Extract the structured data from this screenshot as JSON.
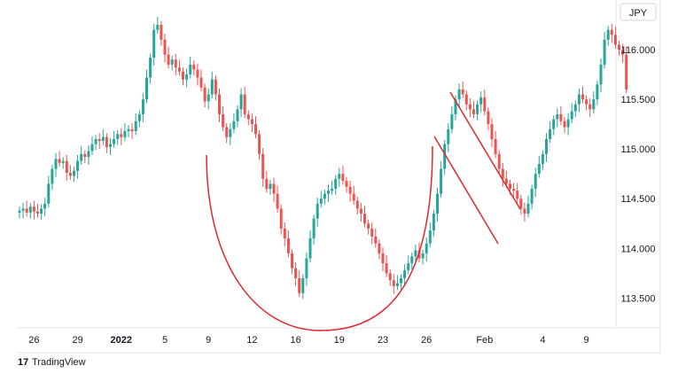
{
  "brand": {
    "name": "TradingView"
  },
  "chart_data": {
    "type": "candlestick",
    "currency": "JPY",
    "y_ticks": [
      "116.000",
      "115.500",
      "115.000",
      "114.500",
      "114.000",
      "113.500"
    ],
    "ylim": [
      113.2,
      116.5
    ],
    "x_ticks": [
      {
        "label": "26",
        "i": 4
      },
      {
        "label": "29",
        "i": 16
      },
      {
        "label": "2022",
        "i": 28
      },
      {
        "label": "5",
        "i": 40
      },
      {
        "label": "9",
        "i": 52
      },
      {
        "label": "12",
        "i": 64
      },
      {
        "label": "16",
        "i": 76
      },
      {
        "label": "19",
        "i": 88
      },
      {
        "label": "23",
        "i": 100
      },
      {
        "label": "26",
        "i": 112
      },
      {
        "label": "Feb",
        "i": 128
      },
      {
        "label": "4",
        "i": 144
      },
      {
        "label": "9",
        "i": 156
      }
    ],
    "up_color": "#26a69a",
    "down_color": "#ef5350",
    "annotation_color": "#e0282e",
    "closes": [
      114.38,
      114.4,
      114.36,
      114.42,
      114.37,
      114.35,
      114.4,
      114.45,
      114.65,
      114.8,
      114.9,
      114.86,
      114.88,
      114.76,
      114.73,
      114.78,
      114.88,
      114.95,
      114.92,
      114.98,
      115.05,
      115.1,
      115.08,
      115.12,
      115.02,
      115.05,
      115.1,
      115.15,
      115.12,
      115.18,
      115.2,
      115.18,
      115.28,
      115.35,
      115.5,
      115.72,
      115.92,
      116.2,
      116.25,
      116.1,
      115.95,
      115.85,
      115.9,
      115.82,
      115.78,
      115.7,
      115.75,
      115.85,
      115.8,
      115.72,
      115.62,
      115.48,
      115.55,
      115.7,
      115.55,
      115.35,
      115.22,
      115.12,
      115.2,
      115.28,
      115.4,
      115.55,
      115.35,
      115.3,
      115.25,
      115.15,
      114.95,
      114.7,
      114.6,
      114.65,
      114.55,
      114.4,
      114.2,
      114.1,
      113.95,
      113.8,
      113.7,
      113.55,
      113.7,
      113.9,
      114.1,
      114.3,
      114.45,
      114.5,
      114.55,
      114.58,
      114.6,
      114.7,
      114.75,
      114.68,
      114.62,
      114.55,
      114.48,
      114.4,
      114.35,
      114.25,
      114.2,
      114.12,
      114.05,
      113.95,
      113.85,
      113.75,
      113.68,
      113.62,
      113.65,
      113.7,
      113.78,
      113.85,
      113.92,
      113.98,
      113.9,
      113.95,
      114.05,
      114.18,
      114.35,
      114.55,
      114.8,
      115.05,
      115.2,
      115.35,
      115.5,
      115.6,
      115.55,
      115.45,
      115.4,
      115.35,
      115.45,
      115.52,
      115.38,
      115.25,
      115.1,
      114.95,
      114.8,
      114.7,
      114.65,
      114.6,
      114.58,
      114.5,
      114.4,
      114.35,
      114.45,
      114.6,
      114.75,
      114.85,
      114.95,
      115.1,
      115.2,
      115.3,
      115.35,
      115.28,
      115.22,
      115.3,
      115.38,
      115.45,
      115.55,
      115.5,
      115.45,
      115.4,
      115.5,
      115.65,
      115.85,
      116.1,
      116.2,
      116.15,
      116.05,
      116.0,
      115.95,
      115.6
    ]
  }
}
